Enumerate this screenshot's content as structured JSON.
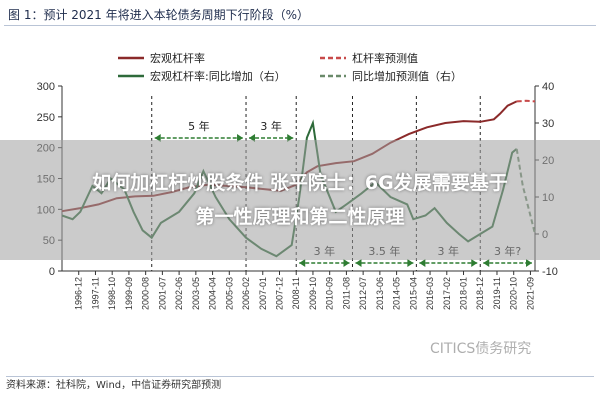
{
  "figure_title": "图 1：预计 2021 年将进入本轮债务周期下行阶段（%）",
  "source": "资料来源：社科院，Wind，中信证券研究部预测",
  "watermark": "CITICS债务研究",
  "overlay": {
    "line1": "如何加杠杆炒股条件 张平院士：6G发展需要基于",
    "line2": "第一性原理和第二性原理"
  },
  "colors": {
    "leverage": "#8b2a2a",
    "leverage_forecast": "#c84a4a",
    "yoy": "#2e6a3a",
    "yoy_forecast": "#6a8a6a",
    "period_arrow": "#2e7d32",
    "grid": "#333333"
  },
  "chart_data": {
    "type": "line",
    "legend": [
      {
        "label": "宏观杠杆率",
        "style": "solid",
        "color": "#8b2a2a"
      },
      {
        "label": "杠杆率预测值",
        "style": "dashed",
        "color": "#c84a4a"
      },
      {
        "label": "宏观杠杆率:同比增加（右）",
        "style": "solid",
        "color": "#2e6a3a"
      },
      {
        "label": "同比增加预测值（右）",
        "style": "dashed",
        "color": "#6a8a6a"
      }
    ],
    "x_range": [
      "1996-01",
      "2021-12"
    ],
    "xticks": [
      "1996-12",
      "1997-11",
      "1998-10",
      "1999-09",
      "2000-08",
      "2001-07",
      "2002-06",
      "2003-05",
      "2004-04",
      "2005-03",
      "2006-02",
      "2007-01",
      "2007-12",
      "2008-11",
      "2009-10",
      "2010-09",
      "2011-08",
      "2012-07",
      "2013-06",
      "2014-05",
      "2015-04",
      "2016-03",
      "2017-02",
      "2018-01",
      "2018-12",
      "2019-11",
      "2020-10",
      "2021-09"
    ],
    "y_left": {
      "min": 0,
      "max": 300,
      "ticks": [
        0,
        50,
        100,
        150,
        200,
        250,
        300
      ]
    },
    "y_right": {
      "min": -10,
      "max": 40,
      "ticks": [
        -10,
        0,
        10,
        20,
        30,
        40
      ]
    },
    "series": [
      {
        "name": "宏观杠杆率",
        "axis": "left",
        "points": [
          [
            "1996-01",
            97
          ],
          [
            "1997-01",
            102
          ],
          [
            "1998-01",
            108
          ],
          [
            "1999-01",
            118
          ],
          [
            "2000-01",
            121
          ],
          [
            "2001-01",
            122
          ],
          [
            "2002-01",
            128
          ],
          [
            "2003-01",
            136
          ],
          [
            "2004-01",
            140
          ],
          [
            "2005-01",
            138
          ],
          [
            "2006-01",
            136
          ],
          [
            "2007-01",
            133
          ],
          [
            "2008-01",
            130
          ],
          [
            "2008-11",
            140
          ],
          [
            "2009-06",
            160
          ],
          [
            "2010-01",
            170
          ],
          [
            "2011-01",
            175
          ],
          [
            "2012-01",
            178
          ],
          [
            "2013-01",
            190
          ],
          [
            "2014-01",
            208
          ],
          [
            "2015-01",
            222
          ],
          [
            "2016-01",
            233
          ],
          [
            "2017-01",
            240
          ],
          [
            "2018-01",
            243
          ],
          [
            "2018-12",
            242
          ],
          [
            "2019-09",
            246
          ],
          [
            "2020-01",
            255
          ],
          [
            "2020-06",
            268
          ],
          [
            "2020-12",
            275
          ]
        ]
      },
      {
        "name": "杠杆率预测值",
        "axis": "left",
        "points": [
          [
            "2020-12",
            275
          ],
          [
            "2021-06",
            276
          ],
          [
            "2021-12",
            275
          ]
        ]
      },
      {
        "name": "宏观杠杆率:同比增加（右）",
        "axis": "right",
        "points": [
          [
            "1996-01",
            5
          ],
          [
            "1996-08",
            4
          ],
          [
            "1997-01",
            6
          ],
          [
            "1997-09",
            13
          ],
          [
            "1998-03",
            11
          ],
          [
            "1998-09",
            15
          ],
          [
            "1999-06",
            12
          ],
          [
            "1999-12",
            6
          ],
          [
            "2000-06",
            1
          ],
          [
            "2000-12",
            -1
          ],
          [
            "2001-06",
            3
          ],
          [
            "2002-06",
            6
          ],
          [
            "2003-04",
            11
          ],
          [
            "2003-10",
            17
          ],
          [
            "2004-06",
            10
          ],
          [
            "2005-03",
            4
          ],
          [
            "2006-02",
            -1
          ],
          [
            "2006-12",
            -4
          ],
          [
            "2007-10",
            -6
          ],
          [
            "2008-08",
            -3
          ],
          [
            "2009-01",
            10
          ],
          [
            "2009-06",
            26
          ],
          [
            "2009-10",
            30
          ],
          [
            "2010-03",
            16
          ],
          [
            "2011-01",
            6
          ],
          [
            "2011-08",
            8
          ],
          [
            "2012-06",
            11
          ],
          [
            "2013-03",
            14
          ],
          [
            "2014-01",
            10
          ],
          [
            "2014-12",
            8
          ],
          [
            "2015-04",
            4
          ],
          [
            "2015-12",
            5
          ],
          [
            "2016-06",
            7
          ],
          [
            "2017-02",
            3
          ],
          [
            "2017-10",
            0
          ],
          [
            "2018-04",
            -2
          ],
          [
            "2018-12",
            0
          ],
          [
            "2019-08",
            2
          ],
          [
            "2020-03",
            12
          ],
          [
            "2020-09",
            22
          ],
          [
            "2020-12",
            23
          ]
        ]
      },
      {
        "name": "同比增加预测值（右）",
        "axis": "right",
        "points": [
          [
            "2020-12",
            23
          ],
          [
            "2021-04",
            13
          ],
          [
            "2021-09",
            5
          ],
          [
            "2021-12",
            0
          ]
        ]
      }
    ],
    "periods": [
      {
        "label": "5 年",
        "from": "2000-12",
        "to": "2006-02",
        "row": "top"
      },
      {
        "label": "3 年",
        "from": "2006-02",
        "to": "2008-11",
        "row": "top"
      },
      {
        "label": "3 年",
        "from": "2008-11",
        "to": "2011-12",
        "row": "bottom"
      },
      {
        "label": "3.5 年",
        "from": "2011-12",
        "to": "2015-06",
        "row": "bottom"
      },
      {
        "label": "3 年",
        "from": "2015-06",
        "to": "2018-12",
        "row": "bottom"
      },
      {
        "label": "3 年?",
        "from": "2018-12",
        "to": "2021-12",
        "row": "bottom"
      }
    ],
    "vertical_markers": [
      "2000-12",
      "2006-02",
      "2008-11",
      "2011-12",
      "2015-06",
      "2018-12"
    ]
  }
}
